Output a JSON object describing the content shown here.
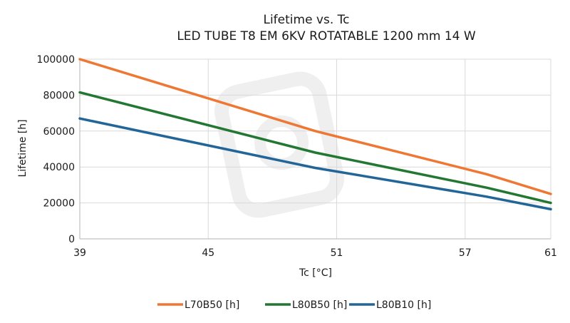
{
  "chart_data": {
    "type": "line",
    "title": "Lifetime vs. Tc",
    "subtitle": "LED TUBE T8 EM 6KV ROTATABLE 1200 mm 14 W",
    "xlabel": "Tc [°C]",
    "ylabel": "Lifetime [h]",
    "x_ticks": [
      39,
      45,
      51,
      57,
      61
    ],
    "y_ticks": [
      0,
      20000,
      40000,
      60000,
      80000,
      100000
    ],
    "y_tick_labels": [
      "0",
      "20000",
      "40000",
      "60000",
      "80000",
      "100000"
    ],
    "xlim": [
      39,
      61
    ],
    "ylim": [
      0,
      100000
    ],
    "grid": true,
    "legend_position": "bottom",
    "series": [
      {
        "name": "L70B50 [h]",
        "color": "#ee7733",
        "x": [
          39,
          50,
          58,
          61
        ],
        "y": [
          100000,
          60000,
          36000,
          25000
        ]
      },
      {
        "name": "L80B50 [h]",
        "color": "#227733",
        "x": [
          39,
          50,
          58,
          61
        ],
        "y": [
          81500,
          48000,
          28500,
          20000
        ]
      },
      {
        "name": "L80B10 [h]",
        "color": "#226699",
        "x": [
          39,
          50,
          58,
          61
        ],
        "y": [
          67000,
          39500,
          23500,
          16500
        ]
      }
    ]
  }
}
